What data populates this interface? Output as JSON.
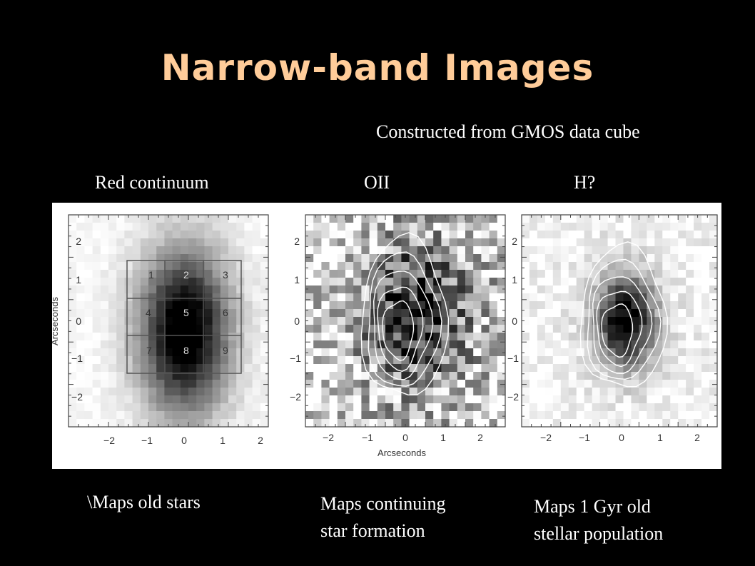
{
  "slide": {
    "title": "Narrow-band Images",
    "subtitle": "Constructed from GMOS data cube",
    "title_color": "#ffcc99",
    "background": "#000000"
  },
  "panels": [
    {
      "label": "Red continuum",
      "caption_line1": "\\Maps old stars",
      "caption_line2": "",
      "grid_numbers": [
        "1",
        "2",
        "3",
        "4",
        "5",
        "6",
        "7",
        "8",
        "9"
      ],
      "x_tick_labels": [
        "−2",
        "−1",
        "0",
        "1",
        "2"
      ],
      "y_tick_labels": [
        "2",
        "1",
        "0",
        "−1",
        "−2"
      ],
      "y_axis_label": "Arcseconds",
      "x_axis_label": ""
    },
    {
      "label": "OII",
      "caption_line1": "Maps continuing",
      "caption_line2": "star formation",
      "x_tick_labels": [
        "−2",
        "−1",
        "0",
        "1",
        "2"
      ],
      "y_tick_labels": [
        "2",
        "1",
        "0",
        "−1",
        "−2"
      ],
      "x_axis_label": "Arcseconds"
    },
    {
      "label": "H?",
      "caption_line1": "Maps 1 Gyr old",
      "caption_line2": "stellar population",
      "x_tick_labels": [
        "−2",
        "−1",
        "0",
        "1",
        "2"
      ],
      "y_tick_labels": [
        "2",
        "1",
        "0",
        "−1",
        "−2"
      ],
      "x_axis_label": ""
    }
  ]
}
